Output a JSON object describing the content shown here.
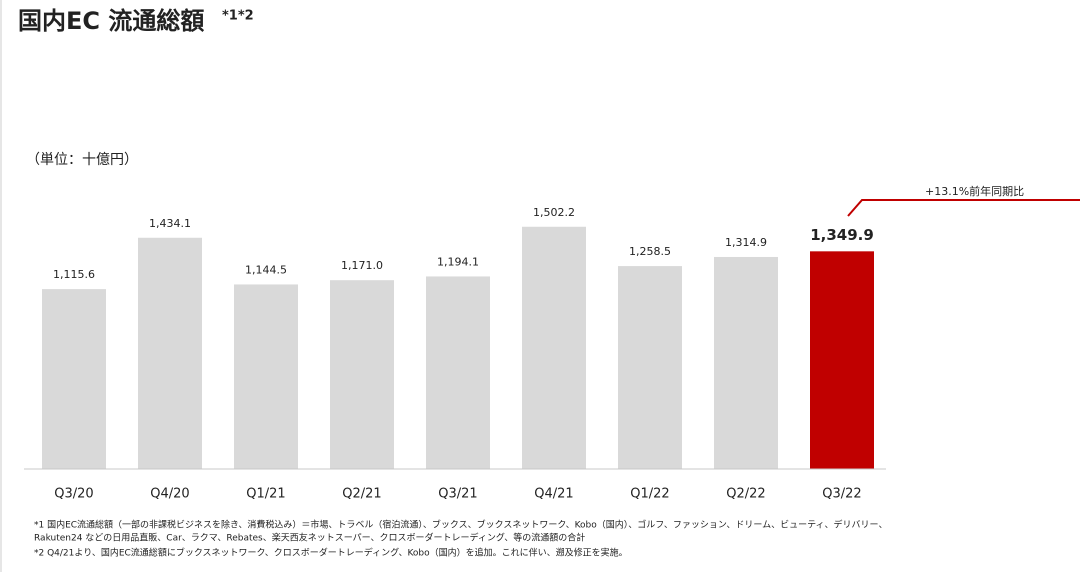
{
  "chart_data": {
    "type": "bar",
    "title": "国内EC 流通総額",
    "title_superscript": "*1*2",
    "unit_label": "（単位：十億円）",
    "annotation": "+13.1%前年同期比",
    "categories": [
      "Q3/20",
      "Q4/20",
      "Q1/21",
      "Q2/21",
      "Q3/21",
      "Q4/21",
      "Q1/22",
      "Q2/22",
      "Q3/22"
    ],
    "values": [
      1115.6,
      1434.1,
      1144.5,
      1171.0,
      1194.1,
      1502.2,
      1258.5,
      1314.9,
      1349.9
    ],
    "value_labels": [
      "1,115.6",
      "1,434.1",
      "1,144.5",
      "1,171.0",
      "1,194.1",
      "1,502.2",
      "1,258.5",
      "1,314.9",
      "1,349.9"
    ],
    "colors": [
      "#d9d9d9",
      "#d9d9d9",
      "#d9d9d9",
      "#d9d9d9",
      "#d9d9d9",
      "#d9d9d9",
      "#d9d9d9",
      "#d9d9d9",
      "#c00000"
    ],
    "ylim": [
      0,
      1600
    ],
    "footnotes": [
      "*1 国内EC流通総額（一部の非課税ビジネスを除き、消費税込み）＝市場、トラベル（宿泊流通）、ブックス、ブックスネットワーク、Kobo（国内）、ゴルフ、ファッション、ドリーム、ビューティ、デリバリー、",
      "Rakuten24 などの日用品直販、Car、ラクマ、Rebates、楽天西友ネットスーパー、クロスボーダートレーディング、等の流通額の合計",
      "*2 Q4/21より、国内EC流通総額にブックスネットワーク、クロスボーダートレーディング、Kobo（国内）を追加。これに伴い、遡及修正を実施。"
    ]
  }
}
